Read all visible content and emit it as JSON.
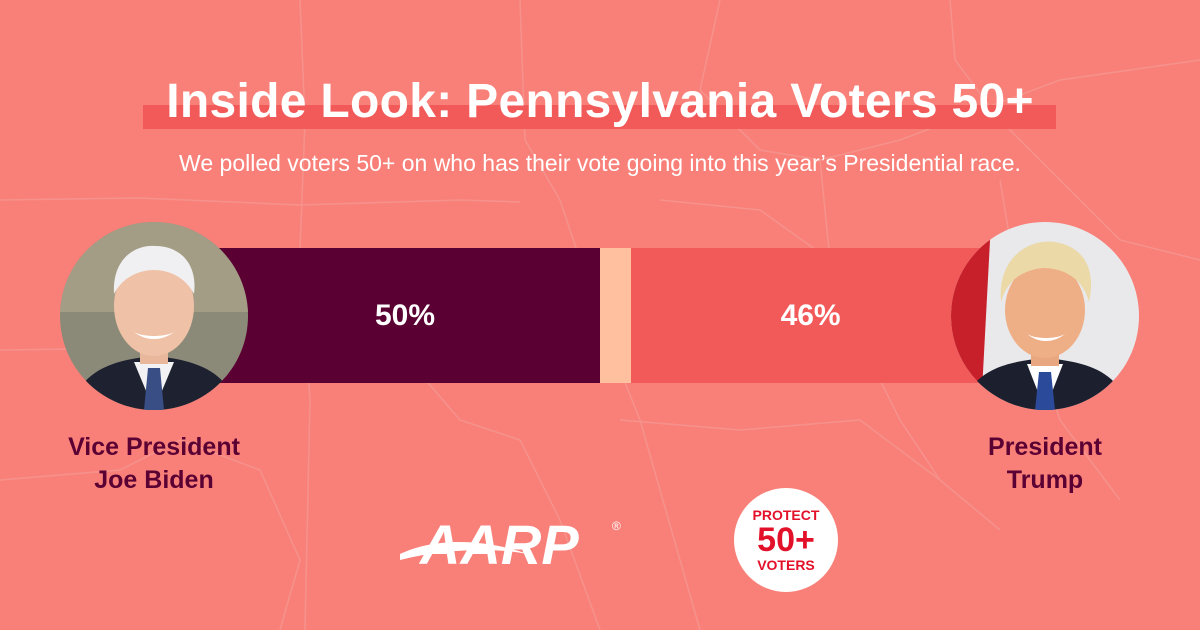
{
  "title": "Inside Look: Pennsylvania Voters 50+",
  "subtitle": "We polled voters 50+ on who has their vote going into this year’s Presidential race.",
  "chart_data": {
    "type": "bar",
    "orientation": "horizontal-stacked",
    "categories": [
      "Vice President Joe Biden",
      "President Trump"
    ],
    "values": [
      50,
      46
    ],
    "remainder": 4,
    "unit": "%",
    "labels": [
      "50%",
      "46%"
    ],
    "colors": [
      "#5b0033",
      "#ffc09f",
      "#f25a5a"
    ]
  },
  "candidates": [
    {
      "name_line1": "Vice President",
      "name_line2": "Joe Biden",
      "value": 50,
      "label": "50%",
      "color": "#5b0033"
    },
    {
      "name_line1": "President",
      "name_line2": "Trump",
      "value": 46,
      "label": "46%",
      "color": "#f25a5a"
    }
  ],
  "remainder": {
    "value": 4,
    "color": "#ffc09f"
  },
  "footer": {
    "aarp_logo_text": "AARP",
    "registered_mark": "®",
    "badge": {
      "top": "PROTECT",
      "middle": "50+",
      "bottom": "VOTERS"
    }
  },
  "colors": {
    "background": "#f98079",
    "title_highlight": "#f25a5a",
    "name_text": "#5b0033",
    "badge_red": "#e3102a"
  }
}
